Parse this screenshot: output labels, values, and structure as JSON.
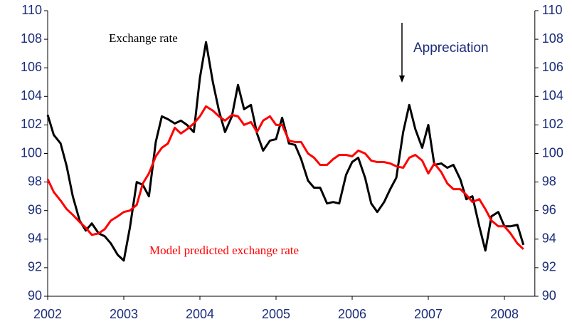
{
  "chart_data": {
    "type": "line",
    "x": [
      2002.0,
      2002.08,
      2002.17,
      2002.25,
      2002.33,
      2002.42,
      2002.5,
      2002.58,
      2002.67,
      2002.75,
      2002.83,
      2002.92,
      2003.0,
      2003.08,
      2003.17,
      2003.25,
      2003.33,
      2003.42,
      2003.5,
      2003.58,
      2003.67,
      2003.75,
      2003.83,
      2003.92,
      2004.0,
      2004.08,
      2004.17,
      2004.25,
      2004.33,
      2004.42,
      2004.5,
      2004.58,
      2004.67,
      2004.75,
      2004.83,
      2004.92,
      2005.0,
      2005.08,
      2005.17,
      2005.25,
      2005.33,
      2005.42,
      2005.5,
      2005.58,
      2005.67,
      2005.75,
      2005.83,
      2005.92,
      2006.0,
      2006.08,
      2006.17,
      2006.25,
      2006.33,
      2006.42,
      2006.5,
      2006.58,
      2006.67,
      2006.75,
      2006.83,
      2006.92,
      2007.0,
      2007.08,
      2007.17,
      2007.25,
      2007.33,
      2007.42,
      2007.5,
      2007.58,
      2007.67,
      2007.75,
      2007.83,
      2007.92,
      2008.0,
      2008.08,
      2008.17,
      2008.25
    ],
    "series": [
      {
        "color": "#000000",
        "values": [
          102.7,
          101.3,
          100.7,
          99.1,
          97.0,
          95.3,
          94.6,
          95.1,
          94.4,
          94.2,
          93.7,
          92.9,
          92.5,
          94.8,
          98.0,
          97.8,
          97.0,
          100.8,
          102.6,
          102.4,
          102.1,
          102.3,
          102.0,
          101.5,
          105.3,
          107.8,
          105.0,
          103.0,
          101.5,
          102.6,
          104.8,
          103.1,
          103.4,
          101.4,
          100.2,
          100.9,
          101.0,
          102.5,
          100.7,
          100.6,
          99.6,
          98.1,
          97.6,
          97.6,
          96.5,
          96.6,
          96.5,
          98.5,
          99.4,
          99.7,
          98.3,
          96.5,
          95.9,
          96.6,
          97.5,
          98.3,
          101.5,
          103.4,
          101.7,
          100.4,
          102.0,
          99.2,
          99.3,
          99.0,
          99.2,
          98.2,
          96.8,
          97.0,
          94.9,
          93.2,
          95.6,
          95.9,
          94.9,
          94.9,
          95.0,
          93.6
        ]
      },
      {
        "color": "#ff0000",
        "values": [
          98.2,
          97.3,
          96.7,
          96.1,
          95.7,
          95.2,
          94.8,
          94.3,
          94.4,
          94.7,
          95.3,
          95.6,
          95.9,
          96.0,
          96.4,
          97.9,
          98.6,
          99.8,
          100.4,
          100.7,
          101.8,
          101.4,
          101.7,
          102.1,
          102.6,
          103.3,
          103.0,
          102.6,
          102.3,
          102.7,
          102.6,
          102.0,
          102.2,
          101.5,
          102.3,
          102.6,
          102.0,
          102.0,
          100.9,
          100.8,
          100.8,
          100.0,
          99.7,
          99.2,
          99.2,
          99.6,
          99.9,
          99.9,
          99.8,
          100.2,
          100.0,
          99.5,
          99.4,
          99.4,
          99.3,
          99.1,
          99.0,
          99.7,
          99.9,
          99.5,
          98.6,
          99.3,
          98.7,
          97.9,
          97.5,
          97.5,
          97.1,
          96.6,
          96.8,
          96.1,
          95.3,
          94.9,
          94.9,
          94.4,
          93.7,
          93.3
        ]
      }
    ],
    "annotations": [
      "Exchange rate",
      "Model predicted exchange rate",
      "Appreciation"
    ],
    "xlim": [
      2002,
      2008.4
    ],
    "xticks": [
      2002,
      2003,
      2004,
      2005,
      2006,
      2007,
      2008
    ],
    "ylim": [
      90,
      110
    ],
    "yticks": [
      90,
      92,
      94,
      96,
      98,
      100,
      102,
      104,
      106,
      108,
      110
    ],
    "y2lim": [
      90,
      110
    ],
    "y2ticks": [
      90,
      92,
      94,
      96,
      98,
      100,
      102,
      104,
      106,
      108,
      110
    ]
  }
}
